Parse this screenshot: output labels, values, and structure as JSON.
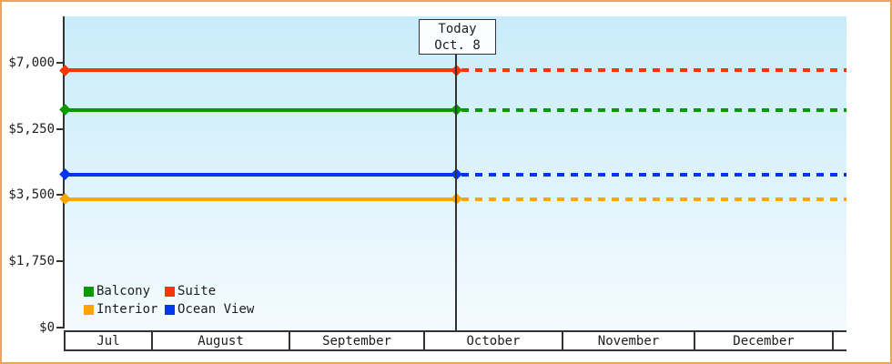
{
  "chart_data": {
    "type": "line",
    "title": "",
    "x_axis": {
      "months": [
        "Jul",
        "August",
        "September",
        "October",
        "November",
        "December"
      ]
    },
    "y_axis": {
      "tick_labels": [
        "$7,000",
        "$5,250",
        "$3,500",
        "$1,750",
        "$0"
      ],
      "tick_values": [
        7000,
        5250,
        3500,
        1750,
        0
      ],
      "ylim": [
        0,
        7000
      ]
    },
    "today_marker": {
      "line1": "Today",
      "line2": "Oct. 8"
    },
    "series": [
      {
        "name": "Balcony",
        "color": "#0A9A00",
        "value": 5750
      },
      {
        "name": "Suite",
        "color": "#F93508",
        "value": 6800
      },
      {
        "name": "Interior",
        "color": "#FFA400",
        "value": 3400
      },
      {
        "name": "Ocean View",
        "color": "#0435F0",
        "value": 4050
      }
    ],
    "legend": {
      "entries": [
        "Balcony",
        "Suite",
        "Interior",
        "Ocean View"
      ],
      "position": "bottom-left-inside"
    },
    "style": {
      "solid_before_today": true,
      "dashed_after_today": true,
      "marker_shape": "diamond",
      "plot_background_top": "#C9ECFA",
      "plot_background_bottom": "#F4FBFF",
      "frame_border_color": "#EAA558",
      "axis_color": "#333333"
    }
  }
}
